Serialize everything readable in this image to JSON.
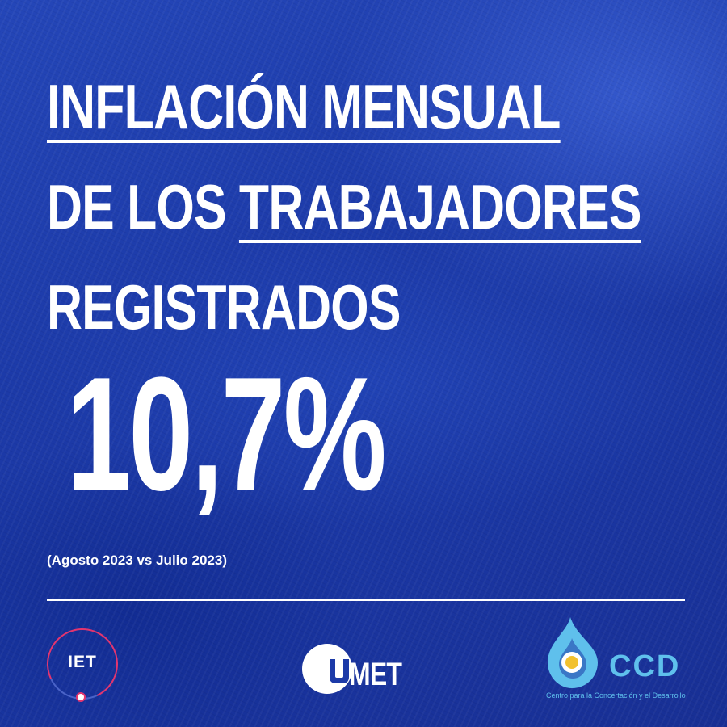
{
  "headline": {
    "line1": "INFLACIÓN MENSUAL",
    "line2_a": "DE LOS ",
    "line2_b": "TRABAJADORES",
    "line3": "REGISTRADOS"
  },
  "value": "10,7%",
  "period": "(Agosto 2023 vs Julio 2023)",
  "logos": {
    "iet": {
      "label": "IET"
    },
    "umet": {
      "label": "MET"
    },
    "ccd": {
      "label": "CCD",
      "subtitle": "Centro para la Concertación y el Desarrollo"
    }
  },
  "colors": {
    "background": "#1c3aa8",
    "text": "#ffffff",
    "iet_ring": "#e3356f",
    "ccd_blue": "#5fc0ec",
    "ccd_yellow": "#f2c12e"
  }
}
